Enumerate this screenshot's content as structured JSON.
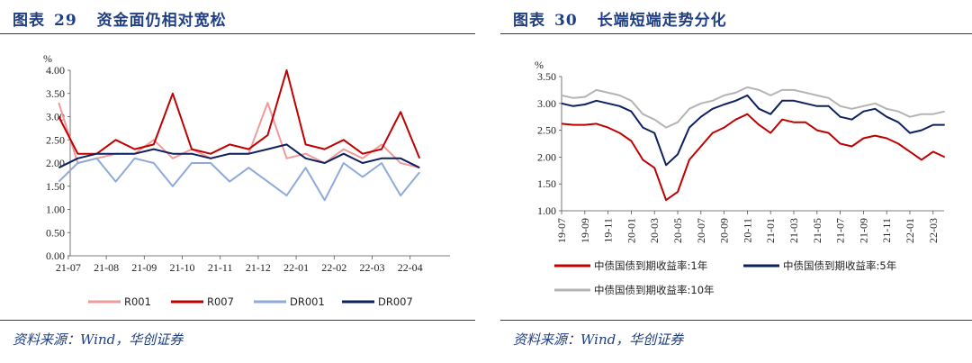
{
  "left": {
    "title_label": "图表",
    "title_number": "29",
    "title_text": "资金面仍相对宽松",
    "source": "资料来源：Wind，华创证券"
  },
  "right": {
    "title_label": "图表",
    "title_number": "30",
    "title_text": "长端短端走势分化",
    "source": "资料来源：Wind，华创证券"
  },
  "colors": {
    "title_blue": "#1f3f82",
    "R001": "#f19a9a",
    "R007": "#c00000",
    "DR001": "#8eaadb",
    "DR007": "#0d2060",
    "cgb_1y": "#c00000",
    "cgb_5y": "#0d2060",
    "cgb_10y": "#b4b4b4"
  },
  "chart_data": [
    {
      "type": "line",
      "ylabel": "%",
      "ylim": [
        0,
        4
      ],
      "yticks": [
        "0.00",
        "0.50",
        "1.00",
        "1.50",
        "2.00",
        "2.50",
        "3.00",
        "3.50",
        "4.00"
      ],
      "x_ticks": [
        "21-07",
        "21-08",
        "21-09",
        "21-10",
        "21-11",
        "21-12",
        "22-01",
        "22-02",
        "22-03",
        "22-04"
      ],
      "legend_position": "bottom",
      "series": [
        {
          "name": "R001",
          "color": "#f19a9a",
          "x": [
            "21-07",
            "21-07",
            "21-08",
            "21-08",
            "21-09",
            "21-09",
            "21-10",
            "21-10",
            "21-11",
            "21-11",
            "21-12",
            "21-12",
            "22-01",
            "22-01",
            "22-02",
            "22-02",
            "22-03",
            "22-03",
            "22-04",
            "22-04"
          ],
          "values": [
            3.3,
            2.0,
            2.1,
            2.2,
            2.2,
            2.5,
            2.1,
            2.3,
            2.1,
            2.2,
            2.2,
            3.3,
            2.1,
            2.2,
            2.0,
            2.3,
            2.1,
            2.4,
            2.0,
            1.9
          ]
        },
        {
          "name": "R007",
          "color": "#c00000",
          "x": [
            "21-07",
            "21-07",
            "21-08",
            "21-08",
            "21-09",
            "21-09",
            "21-10",
            "21-10",
            "21-11",
            "21-11",
            "21-12",
            "21-12",
            "22-01",
            "22-01",
            "22-02",
            "22-02",
            "22-03",
            "22-03",
            "22-04",
            "22-04"
          ],
          "values": [
            3.0,
            2.2,
            2.2,
            2.5,
            2.3,
            2.4,
            3.5,
            2.3,
            2.2,
            2.4,
            2.3,
            2.6,
            4.0,
            2.4,
            2.3,
            2.5,
            2.2,
            2.3,
            3.1,
            2.1
          ]
        },
        {
          "name": "DR001",
          "color": "#8eaadb",
          "x": [
            "21-07",
            "21-07",
            "21-08",
            "21-08",
            "21-09",
            "21-09",
            "21-10",
            "21-10",
            "21-11",
            "21-11",
            "21-12",
            "21-12",
            "22-01",
            "22-01",
            "22-02",
            "22-02",
            "22-03",
            "22-03",
            "22-04",
            "22-04"
          ],
          "values": [
            1.6,
            2.0,
            2.1,
            1.6,
            2.1,
            2.0,
            1.5,
            2.0,
            2.0,
            1.6,
            1.9,
            1.6,
            1.3,
            1.9,
            1.2,
            2.0,
            1.7,
            2.0,
            1.3,
            1.8
          ]
        },
        {
          "name": "DR007",
          "color": "#0d2060",
          "x": [
            "21-07",
            "21-07",
            "21-08",
            "21-08",
            "21-09",
            "21-09",
            "21-10",
            "21-10",
            "21-11",
            "21-11",
            "21-12",
            "21-12",
            "22-01",
            "22-01",
            "22-02",
            "22-02",
            "22-03",
            "22-03",
            "22-04",
            "22-04"
          ],
          "values": [
            1.9,
            2.1,
            2.2,
            2.2,
            2.2,
            2.3,
            2.2,
            2.2,
            2.1,
            2.2,
            2.2,
            2.3,
            2.4,
            2.1,
            2.0,
            2.2,
            2.0,
            2.1,
            2.1,
            1.9
          ]
        }
      ]
    },
    {
      "type": "line",
      "ylabel": "%",
      "ylim": [
        1.0,
        3.5
      ],
      "yticks": [
        "1.00",
        "1.50",
        "2.00",
        "2.50",
        "3.00",
        "3.50"
      ],
      "x_ticks": [
        "19-07",
        "19-09",
        "19-11",
        "20-01",
        "20-03",
        "20-05",
        "20-07",
        "20-09",
        "20-11",
        "21-01",
        "21-03",
        "21-05",
        "21-07",
        "21-09",
        "21-11",
        "22-01",
        "22-03"
      ],
      "legend_position": "bottom",
      "series": [
        {
          "name": "中债国债到期收益率:1年",
          "color": "#c00000",
          "x": [
            "19-07",
            "19-08",
            "19-09",
            "19-10",
            "19-11",
            "19-12",
            "20-01",
            "20-02",
            "20-03",
            "20-04",
            "20-05",
            "20-06",
            "20-07",
            "20-08",
            "20-09",
            "20-10",
            "20-11",
            "20-12",
            "21-01",
            "21-02",
            "21-03",
            "21-04",
            "21-05",
            "21-06",
            "21-07",
            "21-08",
            "21-09",
            "21-10",
            "21-11",
            "21-12",
            "22-01",
            "22-02",
            "22-03",
            "22-04"
          ],
          "values": [
            2.62,
            2.6,
            2.6,
            2.62,
            2.55,
            2.45,
            2.3,
            1.95,
            1.8,
            1.2,
            1.35,
            1.95,
            2.2,
            2.45,
            2.55,
            2.7,
            2.8,
            2.6,
            2.45,
            2.7,
            2.65,
            2.65,
            2.5,
            2.45,
            2.25,
            2.2,
            2.35,
            2.4,
            2.35,
            2.25,
            2.1,
            1.95,
            2.1,
            2.0
          ]
        },
        {
          "name": "中债国债到期收益率:5年",
          "color": "#0d2060",
          "x": [
            "19-07",
            "19-08",
            "19-09",
            "19-10",
            "19-11",
            "19-12",
            "20-01",
            "20-02",
            "20-03",
            "20-04",
            "20-05",
            "20-06",
            "20-07",
            "20-08",
            "20-09",
            "20-10",
            "20-11",
            "20-12",
            "21-01",
            "21-02",
            "21-03",
            "21-04",
            "21-05",
            "21-06",
            "21-07",
            "21-08",
            "21-09",
            "21-10",
            "21-11",
            "21-12",
            "22-01",
            "22-02",
            "22-03",
            "22-04"
          ],
          "values": [
            3.0,
            2.95,
            2.98,
            3.05,
            3.0,
            2.95,
            2.85,
            2.55,
            2.45,
            1.85,
            2.05,
            2.55,
            2.75,
            2.9,
            2.98,
            3.05,
            3.15,
            2.9,
            2.8,
            3.05,
            3.05,
            3.0,
            2.95,
            2.95,
            2.75,
            2.7,
            2.85,
            2.9,
            2.75,
            2.65,
            2.45,
            2.5,
            2.6,
            2.6
          ]
        },
        {
          "name": "中债国债到期收益率:10年",
          "color": "#b4b4b4",
          "x": [
            "19-07",
            "19-08",
            "19-09",
            "19-10",
            "19-11",
            "19-12",
            "20-01",
            "20-02",
            "20-03",
            "20-04",
            "20-05",
            "20-06",
            "20-07",
            "20-08",
            "20-09",
            "20-10",
            "20-11",
            "20-12",
            "21-01",
            "21-02",
            "21-03",
            "21-04",
            "21-05",
            "21-06",
            "21-07",
            "21-08",
            "21-09",
            "21-10",
            "21-11",
            "21-12",
            "22-01",
            "22-02",
            "22-03",
            "22-04"
          ],
          "values": [
            3.15,
            3.1,
            3.12,
            3.25,
            3.2,
            3.15,
            3.05,
            2.8,
            2.7,
            2.55,
            2.65,
            2.9,
            3.0,
            3.05,
            3.15,
            3.2,
            3.3,
            3.25,
            3.15,
            3.25,
            3.25,
            3.2,
            3.15,
            3.1,
            2.95,
            2.9,
            2.95,
            3.0,
            2.9,
            2.85,
            2.75,
            2.8,
            2.8,
            2.85
          ]
        }
      ]
    }
  ]
}
